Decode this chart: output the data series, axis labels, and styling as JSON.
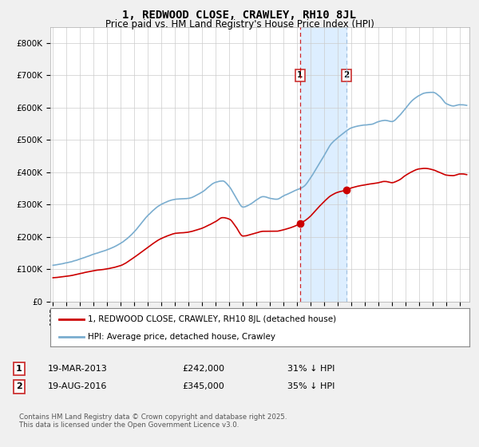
{
  "title": "1, REDWOOD CLOSE, CRAWLEY, RH10 8JL",
  "subtitle": "Price paid vs. HM Land Registry's House Price Index (HPI)",
  "legend_label_red": "1, REDWOOD CLOSE, CRAWLEY, RH10 8JL (detached house)",
  "legend_label_blue": "HPI: Average price, detached house, Crawley",
  "transaction1_date": "19-MAR-2013",
  "transaction1_price": "£242,000",
  "transaction1_hpi": "31% ↓ HPI",
  "transaction1_year": 2013.21,
  "transaction1_value": 242000,
  "transaction2_date": "19-AUG-2016",
  "transaction2_price": "£345,000",
  "transaction2_hpi": "35% ↓ HPI",
  "transaction2_year": 2016.63,
  "transaction2_value": 345000,
  "footer": "Contains HM Land Registry data © Crown copyright and database right 2025.\nThis data is licensed under the Open Government Licence v3.0.",
  "ylim": [
    0,
    850000
  ],
  "yticks": [
    0,
    100000,
    200000,
    300000,
    400000,
    500000,
    600000,
    700000,
    800000
  ],
  "ytick_labels": [
    "£0",
    "£100K",
    "£200K",
    "£300K",
    "£400K",
    "£500K",
    "£600K",
    "£700K",
    "£800K"
  ],
  "color_red": "#cc0000",
  "color_blue": "#7aadcf",
  "color_shade": "#ddeeff",
  "color_vline1": "#cc0000",
  "color_vline2": "#99bbdd",
  "background_color": "#f0f0f0",
  "plot_background": "#ffffff",
  "xmin": 1995,
  "xmax": 2025.5
}
